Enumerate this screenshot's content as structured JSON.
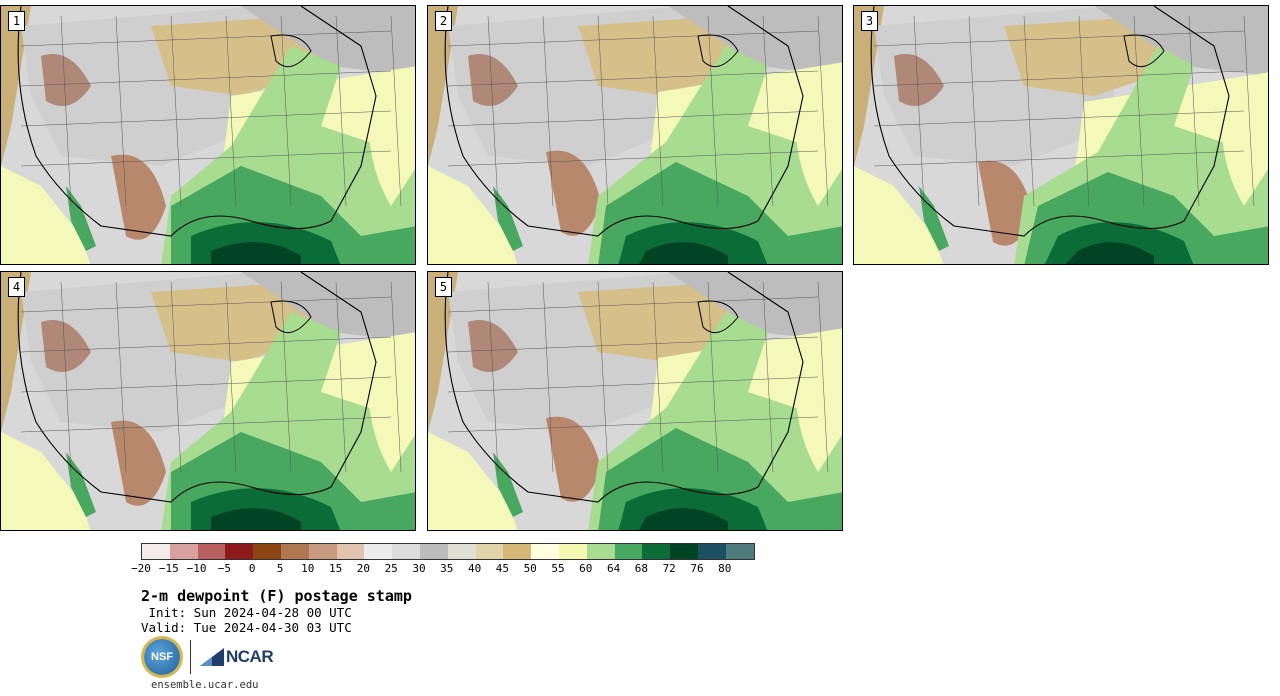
{
  "panels": [
    {
      "label": "1",
      "pattern": "a"
    },
    {
      "label": "2",
      "pattern": "b"
    },
    {
      "label": "3",
      "pattern": "c"
    },
    {
      "label": "4",
      "pattern": "a"
    },
    {
      "label": "5",
      "pattern": "b"
    }
  ],
  "colorbar": {
    "colors": [
      "#f4ecec",
      "#d9a0a0",
      "#b86060",
      "#8c1a1a",
      "#8b4513",
      "#b07850",
      "#c89a80",
      "#e0c4b0",
      "#ececec",
      "#dcdcdc",
      "#bcbcbc",
      "#e0e0d4",
      "#e0d4a8",
      "#d4b878",
      "#ffffe0",
      "#f4f8b0",
      "#a8dc90",
      "#48a860",
      "#0c6c38",
      "#004424",
      "#1c5060",
      "#4c7c7c"
    ],
    "ticks": [
      "−20",
      "−15",
      "−10",
      "−5",
      "0",
      "5",
      "10",
      "15",
      "20",
      "25",
      "30",
      "35",
      "40",
      "45",
      "50",
      "55",
      "60",
      "64",
      "68",
      "72",
      "76",
      "80"
    ]
  },
  "title": "2-m dewpoint (F) postage stamp",
  "init": " Init: Sun 2024-04-28 00 UTC",
  "valid": "Valid: Tue 2024-04-30 03 UTC",
  "logos": {
    "nsf": "NSF",
    "ncar": "NCAR"
  },
  "url": "ensemble.ucar.edu"
}
